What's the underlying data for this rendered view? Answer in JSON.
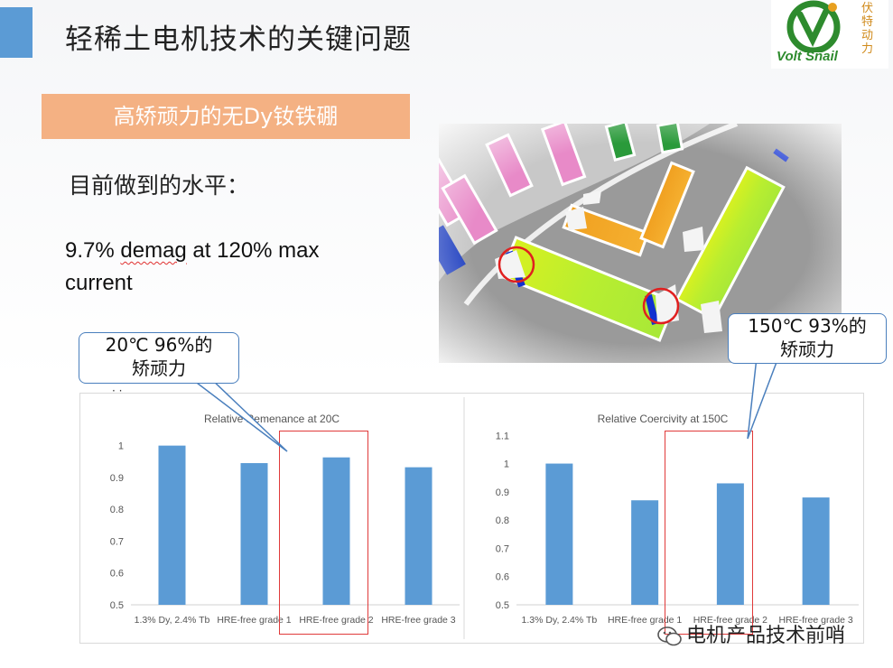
{
  "slide": {
    "title": "轻稀土电机技术的关键问题",
    "subtitle": "高矫顽力的无Dy钕铁硼",
    "level_label": "目前做到的水平：",
    "demag_line1_a": "9.7% ",
    "demag_line1_b": "demag",
    "demag_line1_c": " at 120% max",
    "demag_line2": "current"
  },
  "logo": {
    "text": "Volt Snail",
    "cn": "伏特动力",
    "colors": {
      "green": "#2e8b2e",
      "orange": "#d08a1a"
    }
  },
  "callouts": {
    "left": {
      "line1": "20℃ 96%的",
      "line2": "矫顽力"
    },
    "right": {
      "line1": "150℃ 93%的",
      "line2": "矫顽力"
    }
  },
  "watermark": {
    "text": "电机产品技术前哨",
    "icon": "wechat-icon"
  },
  "colors": {
    "bar": "#5b9bd5",
    "accent": "#5b9bd5",
    "subtitle_bg": "#f4b183",
    "highlight": "#e03a3a"
  },
  "chart_data": [
    {
      "type": "bar",
      "title": "Relative Remenance at 20C",
      "categories": [
        "1.3% Dy, 2.4% Tb",
        "HRE-free grade 1",
        "HRE-free grade 2",
        "HRE-free grade 3"
      ],
      "values": [
        1.0,
        0.945,
        0.963,
        0.932
      ],
      "yticks": [
        "0.5",
        "0.6",
        "0.7",
        "0.8",
        "0.9",
        "1"
      ],
      "ylim": [
        0.5,
        1.05
      ],
      "highlight_index": 2
    },
    {
      "type": "bar",
      "title": "Relative Coercivity at 150C",
      "categories": [
        "1.3% Dy, 2.4% Tb",
        "HRE-free grade 1",
        "HRE-free grade 2",
        "HRE-free grade 3"
      ],
      "values": [
        1.0,
        0.87,
        0.93,
        0.88
      ],
      "yticks": [
        "0.5",
        "0.6",
        "0.7",
        "0.8",
        "0.9",
        "1",
        "1.1"
      ],
      "ylim": [
        0.5,
        1.12
      ],
      "highlight_index": 2
    }
  ]
}
